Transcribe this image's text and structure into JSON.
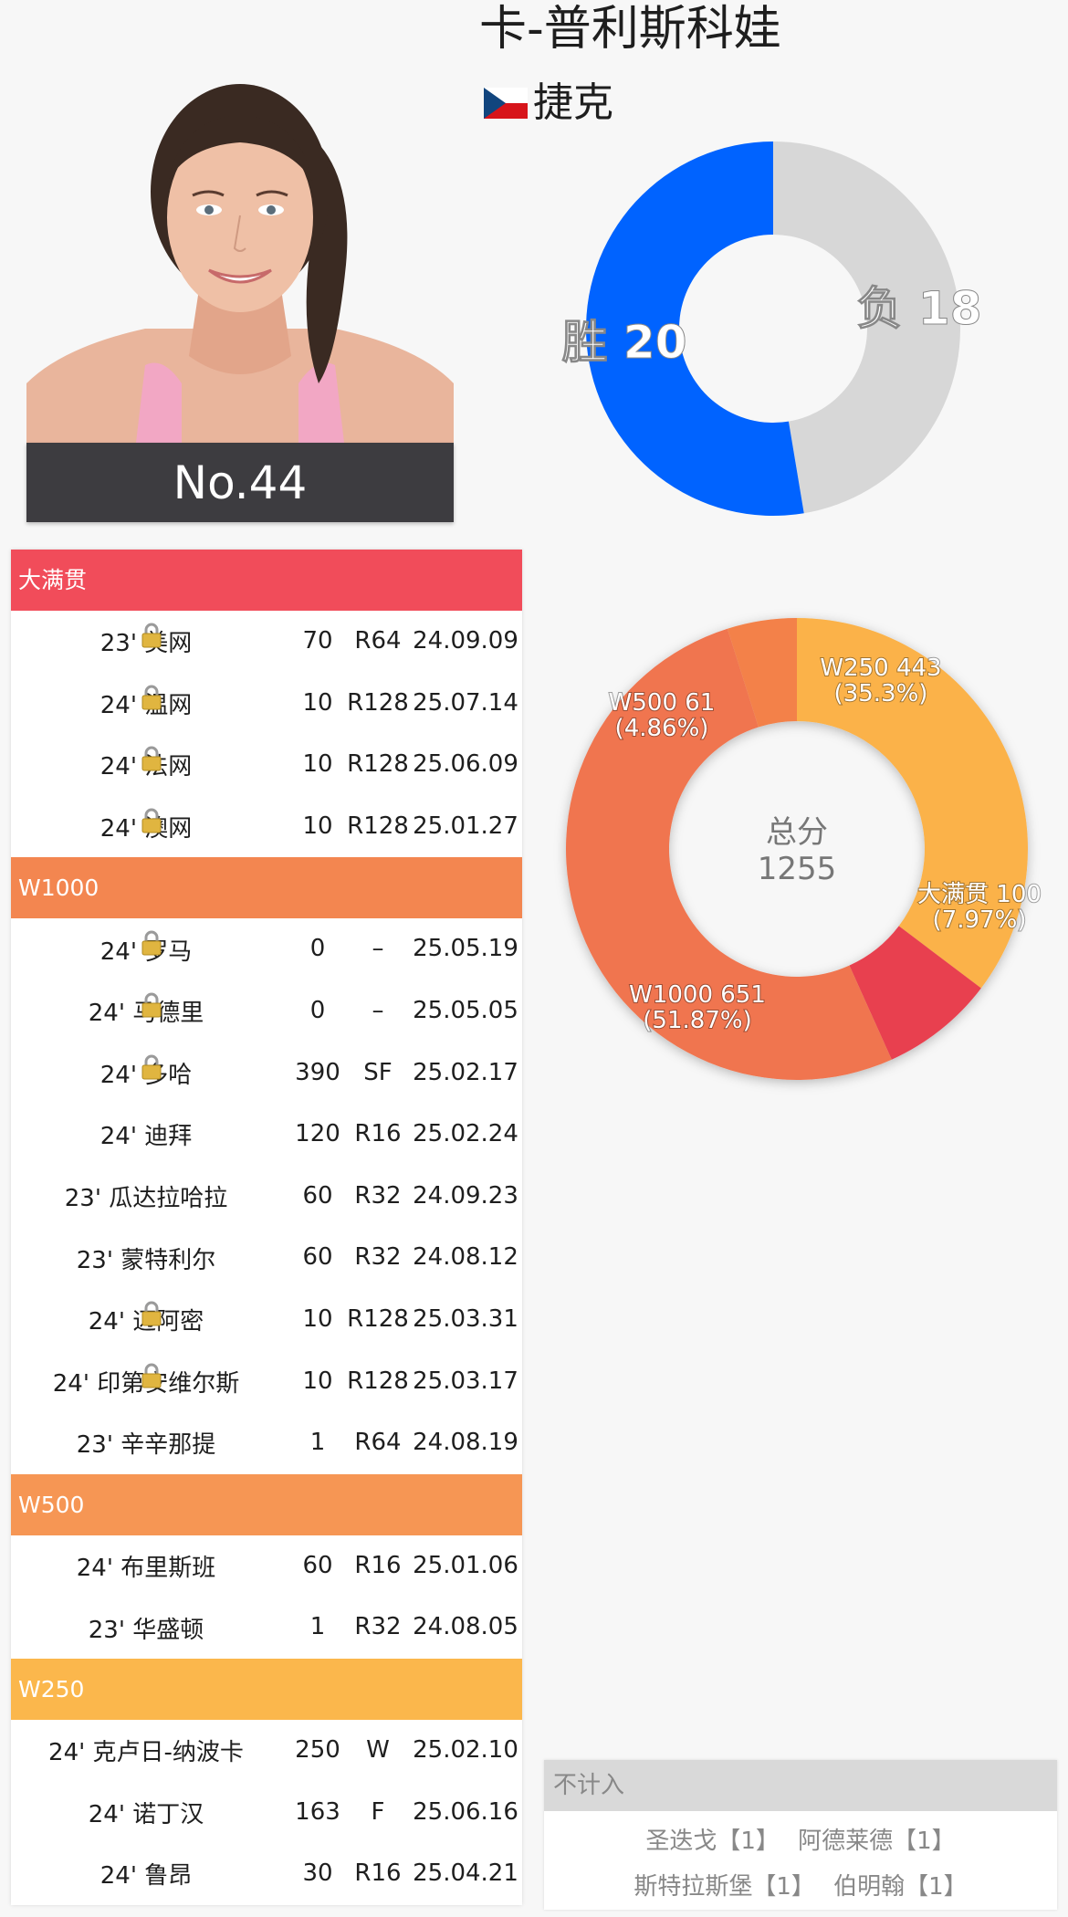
{
  "player": {
    "name": "卡-普利斯科娃",
    "country": "捷克",
    "rank": "No.44"
  },
  "winloss": {
    "wins_label": "胜",
    "wins": 20,
    "losses_label": "负",
    "losses": 18,
    "win_color": "#0063ff",
    "loss_color": "#d7d7d7"
  },
  "points_chart": {
    "center_label": "总分",
    "total": "1255",
    "segments": [
      {
        "name": "W250",
        "value": 443,
        "pct": "(35.3%)",
        "color": "#fbb24a"
      },
      {
        "name": "大满贯",
        "value": 100,
        "pct": "(7.97%)",
        "color": "#e8404f"
      },
      {
        "name": "W1000",
        "value": 651,
        "pct": "(51.87%)",
        "color": "#f0754f"
      },
      {
        "name": "W500",
        "value": 61,
        "pct": "(4.86%)",
        "color": "#f3814a"
      }
    ]
  },
  "sections": [
    {
      "title": "大满贯",
      "color": "#f14c5a",
      "rows": [
        {
          "name": "23' 美网",
          "locked": true,
          "points": "70",
          "round": "R64",
          "date": "24.09.09"
        },
        {
          "name": "24' 温网",
          "locked": true,
          "points": "10",
          "round": "R128",
          "date": "25.07.14"
        },
        {
          "name": "24' 法网",
          "locked": true,
          "points": "10",
          "round": "R128",
          "date": "25.06.09"
        },
        {
          "name": "24' 澳网",
          "locked": true,
          "points": "10",
          "round": "R128",
          "date": "25.01.27"
        }
      ]
    },
    {
      "title": "W1000",
      "color": "#f38650",
      "rows": [
        {
          "name": "24' 罗马",
          "locked": true,
          "points": "0",
          "round": "–",
          "date": "25.05.19"
        },
        {
          "name": "24' 马德里",
          "locked": true,
          "points": "0",
          "round": "–",
          "date": "25.05.05"
        },
        {
          "name": "24' 多哈",
          "locked": true,
          "points": "390",
          "round": "SF",
          "date": "25.02.17"
        },
        {
          "name": "24' 迪拜",
          "locked": false,
          "points": "120",
          "round": "R16",
          "date": "25.02.24"
        },
        {
          "name": "23' 瓜达拉哈拉",
          "locked": false,
          "points": "60",
          "round": "R32",
          "date": "24.09.23"
        },
        {
          "name": "23' 蒙特利尔",
          "locked": false,
          "points": "60",
          "round": "R32",
          "date": "24.08.12"
        },
        {
          "name": "24' 迈阿密",
          "locked": true,
          "points": "10",
          "round": "R128",
          "date": "25.03.31"
        },
        {
          "name": "24' 印第安维尔斯",
          "locked": true,
          "points": "10",
          "round": "R128",
          "date": "25.03.17"
        },
        {
          "name": "23' 辛辛那提",
          "locked": false,
          "points": "1",
          "round": "R64",
          "date": "24.08.19"
        }
      ]
    },
    {
      "title": "W500",
      "color": "#f69654",
      "rows": [
        {
          "name": "24' 布里斯班",
          "locked": false,
          "points": "60",
          "round": "R16",
          "date": "25.01.06"
        },
        {
          "name": "23' 华盛顿",
          "locked": false,
          "points": "1",
          "round": "R32",
          "date": "24.08.05"
        }
      ]
    },
    {
      "title": "W250",
      "color": "#fbb74c",
      "rows": [
        {
          "name": "24' 克卢日-纳波卡",
          "locked": false,
          "points": "250",
          "round": "W",
          "date": "25.02.10"
        },
        {
          "name": "24' 诺丁汉",
          "locked": false,
          "points": "163",
          "round": "F",
          "date": "25.06.16"
        },
        {
          "name": "24' 鲁昂",
          "locked": false,
          "points": "30",
          "round": "R16",
          "date": "25.04.21"
        }
      ]
    }
  ],
  "excluded": {
    "title": "不计入",
    "items": [
      "圣迭戈【1】",
      "阿德莱德【1】",
      "斯特拉斯堡【1】",
      "伯明翰【1】"
    ]
  }
}
